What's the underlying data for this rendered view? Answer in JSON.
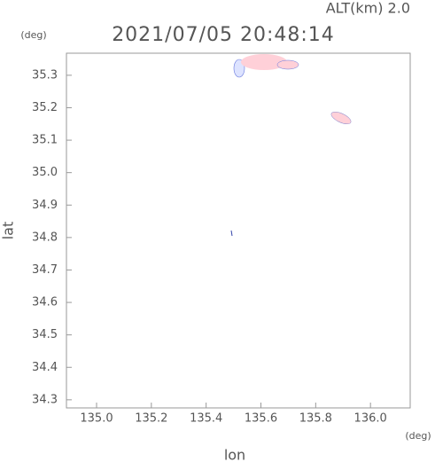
{
  "chart_data": {
    "type": "map",
    "title": "2021/07/05 20:48:14",
    "subtitle": "ALT(km) 2.0",
    "xlabel": "lon",
    "ylabel": "lat",
    "xunit": "(deg)",
    "yunit": "(deg)",
    "xlim": [
      134.89,
      136.145
    ],
    "ylim": [
      34.275,
      35.368
    ],
    "xticks": [
      {
        "value": 135.0,
        "label": "135.0"
      },
      135.2,
      135.4,
      135.6,
      135.8,
      {
        "value": 136.0,
        "label": "136.0"
      }
    ],
    "yticks": [
      34.3,
      34.4,
      34.5,
      34.6,
      34.7,
      34.8,
      34.9,
      {
        "value": 35.0,
        "label": "35.0"
      },
      35.1,
      35.2,
      35.3
    ],
    "axis_color": "#999"
  }
}
